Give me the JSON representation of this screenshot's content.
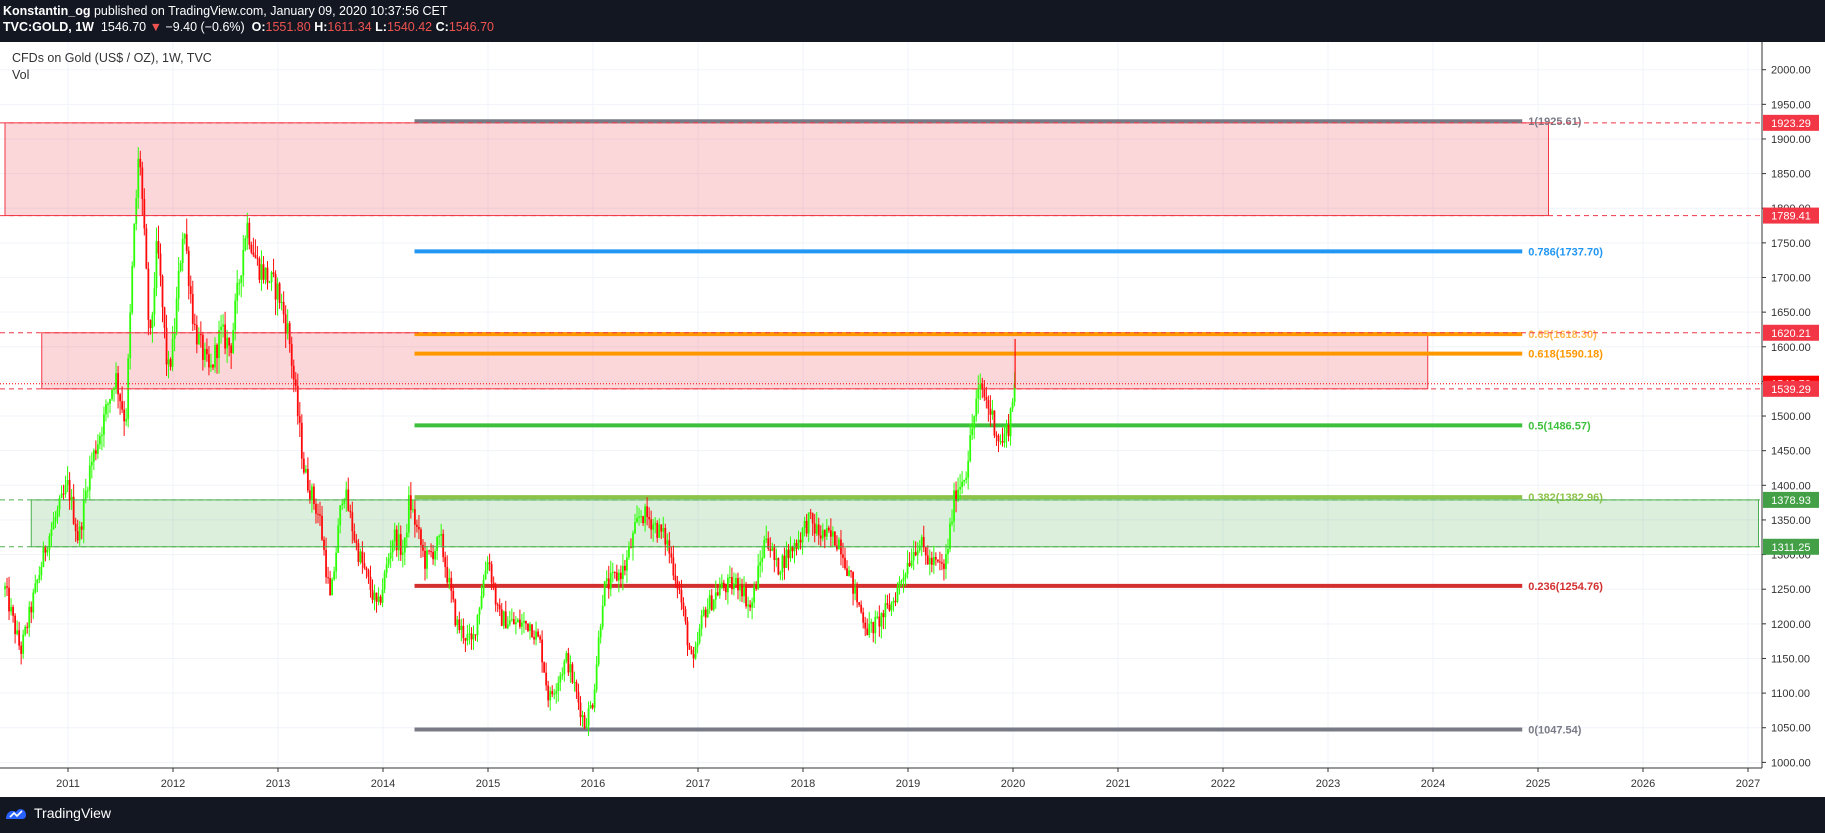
{
  "header": {
    "author": "Konstantin_og",
    "published_text": "published on TradingView.com, January 09, 2020 10:37:56 CET",
    "symbol": "TVC:GOLD, 1W",
    "last": "1546.70",
    "change": "−9.40 (−0.6%)",
    "o_label": "O:",
    "o_value": "1551.80",
    "h_label": "H:",
    "h_value": "1611.34",
    "l_label": "L:",
    "l_value": "1540.42",
    "c_label": "C:",
    "c_value": "1546.70"
  },
  "legend": {
    "title": "CFDs on Gold (US$ / OZ), 1W, TVC",
    "indicator": "Vol"
  },
  "footer": {
    "brand": "TradingView"
  },
  "colors": {
    "background": "#ffffff",
    "up": "#2cff05",
    "down": "#ff0a0a",
    "red_zone": "#f23645",
    "green_zone": "#4caf50"
  },
  "chart_data": {
    "type": "candlestick",
    "x_axis": {
      "ticks": [
        "2011",
        "2012",
        "2013",
        "2014",
        "2015",
        "2016",
        "2017",
        "2018",
        "2019",
        "2020",
        "2021",
        "2022",
        "2023",
        "2024",
        "2025",
        "2026",
        "2027"
      ]
    },
    "y_axis": {
      "range": [
        950,
        2040
      ],
      "ticks": [
        "1000.00",
        "1050.00",
        "1100.00",
        "1150.00",
        "1200.00",
        "1250.00",
        "1300.00",
        "1350.00",
        "1400.00",
        "1450.00",
        "1500.00",
        "1550.00",
        "1600.00",
        "1650.00",
        "1700.00",
        "1750.00",
        "1800.00",
        "1850.00",
        "1900.00",
        "1950.00",
        "2000.00"
      ]
    },
    "price_path": [
      [
        2010.4,
        1250
      ],
      [
        2010.55,
        1160
      ],
      [
        2010.8,
        1320
      ],
      [
        2011.0,
        1400
      ],
      [
        2011.1,
        1320
      ],
      [
        2011.2,
        1420
      ],
      [
        2011.35,
        1500
      ],
      [
        2011.45,
        1560
      ],
      [
        2011.55,
        1490
      ],
      [
        2011.62,
        1740
      ],
      [
        2011.68,
        1890
      ],
      [
        2011.78,
        1600
      ],
      [
        2011.85,
        1750
      ],
      [
        2011.95,
        1560
      ],
      [
        2012.0,
        1600
      ],
      [
        2012.1,
        1780
      ],
      [
        2012.2,
        1630
      ],
      [
        2012.35,
        1560
      ],
      [
        2012.45,
        1620
      ],
      [
        2012.55,
        1600
      ],
      [
        2012.7,
        1780
      ],
      [
        2012.8,
        1720
      ],
      [
        2013.0,
        1680
      ],
      [
        2013.1,
        1620
      ],
      [
        2013.25,
        1420
      ],
      [
        2013.4,
        1350
      ],
      [
        2013.5,
        1230
      ],
      [
        2013.62,
        1400
      ],
      [
        2013.75,
        1310
      ],
      [
        2013.95,
        1220
      ],
      [
        2014.1,
        1330
      ],
      [
        2014.2,
        1300
      ],
      [
        2014.25,
        1380
      ],
      [
        2014.4,
        1290
      ],
      [
        2014.55,
        1320
      ],
      [
        2014.7,
        1200
      ],
      [
        2014.85,
        1170
      ],
      [
        2015.0,
        1300
      ],
      [
        2015.1,
        1210
      ],
      [
        2015.25,
        1200
      ],
      [
        2015.4,
        1200
      ],
      [
        2015.5,
        1170
      ],
      [
        2015.58,
        1090
      ],
      [
        2015.75,
        1150
      ],
      [
        2015.92,
        1055
      ],
      [
        2016.0,
        1090
      ],
      [
        2016.1,
        1250
      ],
      [
        2016.3,
        1280
      ],
      [
        2016.45,
        1360
      ],
      [
        2016.55,
        1350
      ],
      [
        2016.7,
        1320
      ],
      [
        2016.82,
        1250
      ],
      [
        2016.95,
        1135
      ],
      [
        2017.05,
        1215
      ],
      [
        2017.2,
        1250
      ],
      [
        2017.4,
        1260
      ],
      [
        2017.5,
        1220
      ],
      [
        2017.65,
        1330
      ],
      [
        2017.75,
        1280
      ],
      [
        2017.95,
        1320
      ],
      [
        2018.05,
        1350
      ],
      [
        2018.15,
        1330
      ],
      [
        2018.35,
        1320
      ],
      [
        2018.5,
        1240
      ],
      [
        2018.62,
        1190
      ],
      [
        2018.7,
        1200
      ],
      [
        2018.85,
        1230
      ],
      [
        2019.0,
        1290
      ],
      [
        2019.1,
        1320
      ],
      [
        2019.2,
        1290
      ],
      [
        2019.35,
        1280
      ],
      [
        2019.45,
        1390
      ],
      [
        2019.55,
        1420
      ],
      [
        2019.65,
        1520
      ],
      [
        2019.7,
        1540
      ],
      [
        2019.8,
        1500
      ],
      [
        2019.88,
        1460
      ],
      [
        2019.95,
        1480
      ],
      [
        2020.02,
        1546.7
      ]
    ],
    "zones": [
      {
        "name": "resistance",
        "from": 1789.41,
        "to": 1923.29,
        "color": "red",
        "x_start": 2010.4,
        "x_end": 2025.1
      },
      {
        "name": "mid",
        "from": 1539.29,
        "to": 1620.21,
        "color": "red",
        "x_start": 2010.75,
        "x_end": 2023.95
      },
      {
        "name": "support",
        "from": 1311.25,
        "to": 1378.93,
        "color": "green",
        "x_start": 2010.65,
        "x_end": 2027.1
      }
    ],
    "fib_levels": [
      {
        "label": "1(1925.61)",
        "value": 1925.61,
        "color": "#787b86",
        "label_color": "#787b86"
      },
      {
        "label": "0.786(1737.70)",
        "value": 1737.7,
        "color": "#2196f3",
        "label_color": "#2196f3"
      },
      {
        "label": "0.65(1618.30)",
        "value": 1618.3,
        "color": "#ff9800",
        "label_color": "#ffb74d"
      },
      {
        "label": "0.618(1590.18)",
        "value": 1590.18,
        "color": "#ff9800",
        "label_color": "#ff9800"
      },
      {
        "label": "0.5(1486.57)",
        "value": 1486.57,
        "color": "#3dc13d",
        "label_color": "#3dc13d"
      },
      {
        "label": "0.382(1382.96)",
        "value": 1382.96,
        "color": "#8bc34a",
        "label_color": "#8bc34a"
      },
      {
        "label": "0.236(1254.76)",
        "value": 1254.76,
        "color": "#d32f2f",
        "label_color": "#d32f2f"
      },
      {
        "label": "0(1047.54)",
        "value": 1047.54,
        "color": "#787b86",
        "label_color": "#787b86"
      }
    ],
    "fib_x_range": [
      2014.3,
      2024.85
    ],
    "price_tags": [
      {
        "text": "1923.29",
        "value": 1923.29,
        "bg": "#f23645"
      },
      {
        "text": "1789.41",
        "value": 1789.41,
        "bg": "#f23645"
      },
      {
        "text": "1620.21",
        "value": 1620.21,
        "bg": "#f23645"
      },
      {
        "text": "1546.70",
        "value": 1546.7,
        "bg": "#ff0000"
      },
      {
        "text": "1539.29",
        "value": 1539.29,
        "bg": "#f23645"
      },
      {
        "text": "1378.93",
        "value": 1378.93,
        "bg": "#43a047"
      },
      {
        "text": "1311.25",
        "value": 1311.25,
        "bg": "#43a047"
      }
    ],
    "dashed_lines": [
      {
        "value": 1923.29,
        "color": "#f23645"
      },
      {
        "value": 1789.41,
        "color": "#f23645"
      },
      {
        "value": 1620.21,
        "color": "#f23645"
      },
      {
        "value": 1539.29,
        "color": "#f23645"
      },
      {
        "value": 1546.7,
        "color": "#ff0000",
        "dotted": true
      },
      {
        "value": 1378.93,
        "color": "#4caf50"
      },
      {
        "value": 1311.25,
        "color": "#4caf50"
      }
    ]
  }
}
